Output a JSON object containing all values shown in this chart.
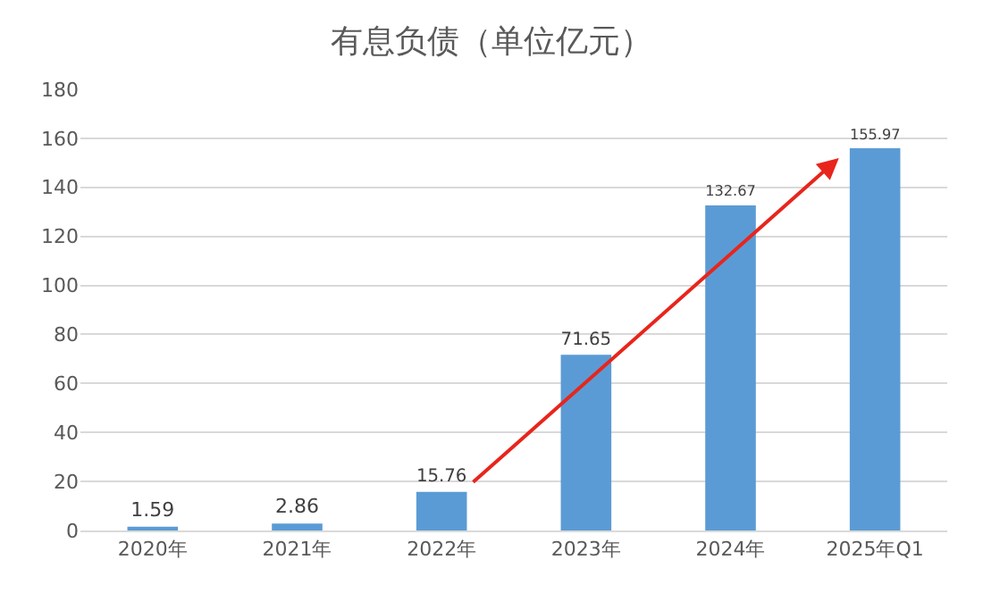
{
  "chart_data": {
    "type": "bar",
    "title": "有息负债（单位亿元）",
    "categories": [
      "2020年",
      "2021年",
      "2022年",
      "2023年",
      "2024年",
      "2025年Q1"
    ],
    "values": [
      1.59,
      2.86,
      15.76,
      71.65,
      132.67,
      155.97
    ],
    "color": "#5b9bd5",
    "ylim": [
      0,
      180
    ],
    "yticks": [
      0,
      20,
      40,
      60,
      80,
      100,
      120,
      140,
      160,
      180
    ],
    "grid": "y",
    "data_labels": true
  }
}
